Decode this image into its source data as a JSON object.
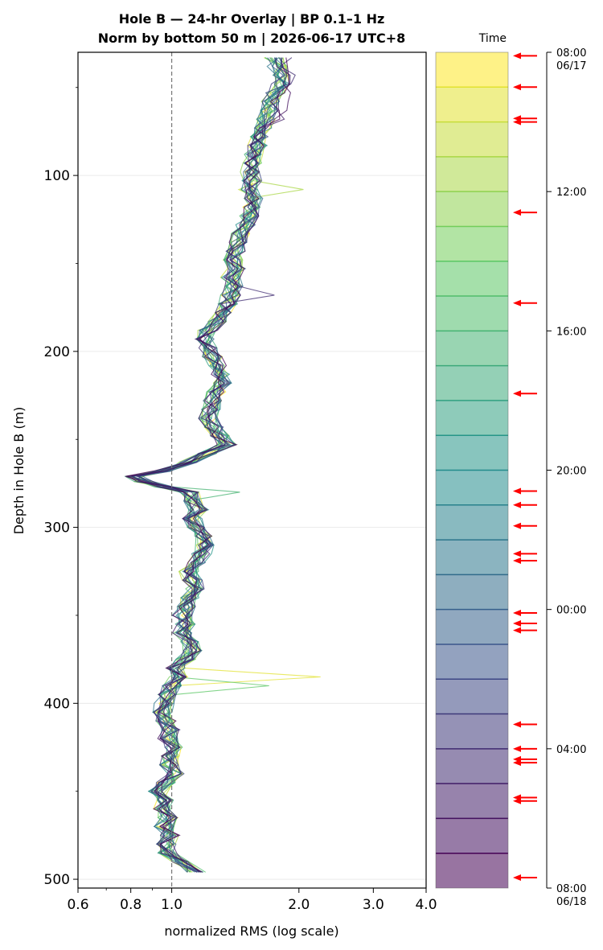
{
  "chart_data": {
    "type": "line",
    "title_line1": "Hole B — 24-hr Overlay  |  BP 0.1–1 Hz",
    "title_line2": "Norm by bottom 50 m  |  2026-06-17 UTC+8",
    "xlabel": "normalized RMS  (log scale)",
    "ylabel": "Depth in Hole B (m)",
    "xscale": "log",
    "xlim": [
      0.6,
      4.0
    ],
    "ylim": [
      505,
      30
    ],
    "x_ticks": [
      0.6,
      0.8,
      1.0,
      2.0,
      3.0,
      4.0
    ],
    "x_tick_labels": [
      "0.6",
      "0.8",
      "1.0",
      "2.0",
      "3.0",
      "4.0"
    ],
    "y_ticks": [
      100,
      200,
      300,
      400,
      500
    ],
    "y_tick_labels": [
      "100",
      "200",
      "300",
      "400",
      "500"
    ],
    "y_minor_ticks": [
      50,
      150,
      250,
      350,
      450
    ],
    "reference_line": {
      "x": 1.0,
      "style": "dashed"
    },
    "grid": "horizontal",
    "profile_depths": [
      33,
      38,
      43,
      48,
      53,
      58,
      63,
      68,
      73,
      78,
      83,
      88,
      93,
      98,
      103,
      108,
      113,
      118,
      123,
      128,
      133,
      138,
      143,
      148,
      153,
      158,
      163,
      168,
      173,
      178,
      183,
      188,
      193,
      198,
      203,
      208,
      213,
      218,
      223,
      228,
      233,
      238,
      243,
      248,
      253,
      258,
      263,
      268,
      271,
      274,
      277,
      280,
      285,
      290,
      295,
      300,
      305,
      310,
      315,
      320,
      325,
      330,
      335,
      340,
      345,
      350,
      355,
      360,
      365,
      370,
      375,
      380,
      385,
      390,
      395,
      400,
      405,
      410,
      415,
      420,
      425,
      430,
      435,
      440,
      445,
      450,
      455,
      460,
      465,
      470,
      475,
      480,
      485,
      490,
      496
    ],
    "profile_median_rms": [
      1.75,
      1.78,
      1.8,
      1.82,
      1.76,
      1.72,
      1.7,
      1.68,
      1.66,
      1.62,
      1.6,
      1.57,
      1.55,
      1.53,
      1.55,
      1.52,
      1.56,
      1.55,
      1.53,
      1.5,
      1.46,
      1.44,
      1.42,
      1.4,
      1.42,
      1.38,
      1.4,
      1.38,
      1.36,
      1.32,
      1.28,
      1.22,
      1.2,
      1.22,
      1.25,
      1.28,
      1.3,
      1.32,
      1.28,
      1.25,
      1.24,
      1.22,
      1.26,
      1.3,
      1.35,
      1.22,
      1.1,
      0.95,
      0.82,
      0.86,
      0.96,
      1.1,
      1.12,
      1.16,
      1.12,
      1.15,
      1.18,
      1.2,
      1.18,
      1.15,
      1.1,
      1.12,
      1.14,
      1.1,
      1.08,
      1.06,
      1.08,
      1.06,
      1.1,
      1.12,
      1.08,
      1.02,
      1.04,
      1.0,
      0.98,
      0.96,
      0.95,
      0.97,
      1.0,
      0.98,
      1.02,
      1.0,
      0.99,
      1.02,
      0.97,
      0.93,
      0.96,
      0.95,
      0.98,
      0.96,
      0.99,
      0.97,
      0.98,
      1.05,
      1.15
    ],
    "colorbar": {
      "title": "Time",
      "tick_labels": [
        "08:00\n06/17",
        "12:00",
        "16:00",
        "20:00",
        "00:00",
        "04:00",
        "08:00\n06/18"
      ],
      "tick_hours": [
        0,
        4,
        8,
        12,
        16,
        20,
        24
      ],
      "colormap": "viridis",
      "n_bands": 24,
      "arrow_hours": [
        0.1,
        1.0,
        1.9,
        2.0,
        4.6,
        7.2,
        9.8,
        12.6,
        13.0,
        13.6,
        14.4,
        14.6,
        16.1,
        16.4,
        16.6,
        19.3,
        20.0,
        20.3,
        20.4,
        21.4,
        21.5,
        23.7
      ],
      "arrow_color": "#ff0000"
    }
  }
}
